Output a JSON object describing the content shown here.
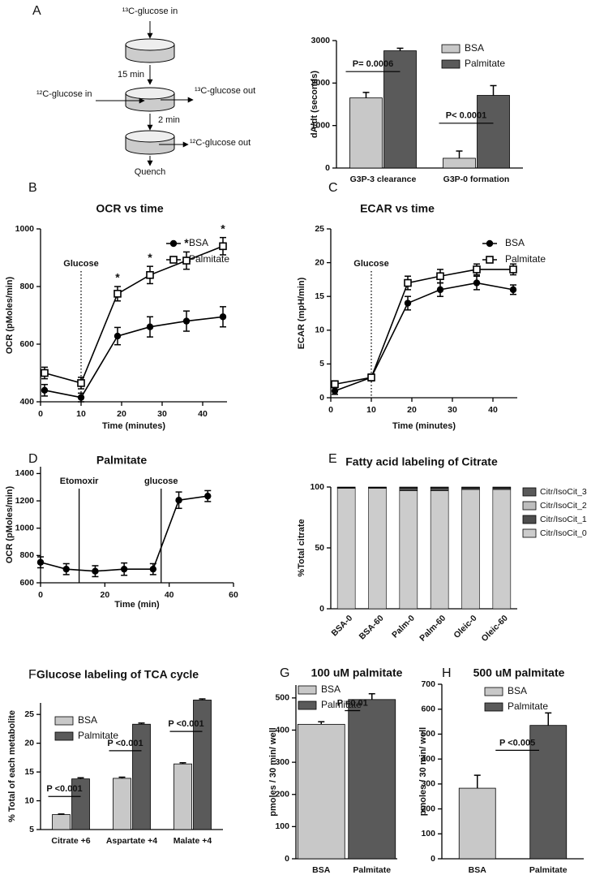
{
  "diagram": {
    "labels": [
      "¹³C-glucose in",
      "15 min",
      "¹²C-glucose in",
      "¹³C-glucose out",
      "2 min",
      "¹²C-glucose out",
      "Quench"
    ]
  },
  "chart_data": [
    {
      "type": "bar",
      "panel": "A",
      "ylabel": "dA/dt (seconds)",
      "categories": [
        "G3P-3 clearance",
        "G3P-0 formation"
      ],
      "series": [
        {
          "name": "BSA",
          "color": "#c8c8c8",
          "values": [
            1650,
            230
          ],
          "errors": [
            130,
            170
          ]
        },
        {
          "name": "Palmitate",
          "color": "#5a5a5a",
          "values": [
            2760,
            1710
          ],
          "errors": [
            60,
            230
          ]
        }
      ],
      "pvalues": [
        "P= 0.0006",
        "P< 0.0001"
      ],
      "ylim": [
        0,
        3000
      ],
      "yticks": [
        0,
        1000,
        2000,
        3000
      ]
    },
    {
      "type": "line",
      "panel": "B",
      "title": "OCR vs time",
      "xlabel": "Time (minutes)",
      "ylabel": "OCR (pMoles/min)",
      "x": [
        1,
        10,
        19,
        27,
        36,
        45
      ],
      "series": [
        {
          "name": "BSA",
          "color": "#000000",
          "marker": "circle",
          "values": [
            440,
            415,
            628,
            660,
            680,
            695
          ],
          "errors": [
            20,
            15,
            30,
            35,
            35,
            35
          ]
        },
        {
          "name": "Palmitate",
          "color": "#000000",
          "marker": "square-open",
          "values": [
            500,
            465,
            775,
            840,
            890,
            940
          ],
          "errors": [
            20,
            20,
            25,
            30,
            30,
            30
          ]
        }
      ],
      "vlines": [
        {
          "x": 10,
          "label": "Glucose"
        }
      ],
      "vline_style": "dotted",
      "significance_label": "*",
      "significant": [
        false,
        false,
        true,
        true,
        true,
        true
      ],
      "xlim": [
        0,
        46
      ],
      "xticks": [
        0,
        10,
        20,
        30,
        40
      ],
      "ylim": [
        400,
        1000
      ],
      "yticks": [
        400,
        600,
        800,
        1000
      ]
    },
    {
      "type": "line",
      "panel": "C",
      "title": "ECAR vs time",
      "xlabel": "Time (minutes)",
      "ylabel": "ECAR (mpH/min)",
      "x": [
        1,
        10,
        19,
        27,
        36,
        45
      ],
      "series": [
        {
          "name": "BSA",
          "color": "#000000",
          "marker": "circle",
          "values": [
            1,
            3,
            14,
            16,
            17,
            16
          ],
          "errors": [
            0.5,
            0.5,
            1,
            1,
            1,
            0.7
          ]
        },
        {
          "name": "Palmitate",
          "color": "#000000",
          "marker": "square-open",
          "values": [
            2,
            3,
            17,
            18,
            19,
            19
          ],
          "errors": [
            0.5,
            0.4,
            1,
            1,
            0.8,
            0.8
          ]
        }
      ],
      "vlines": [
        {
          "x": 10,
          "label": "Glucose"
        }
      ],
      "vline_style": "dotted",
      "xlim": [
        0,
        46
      ],
      "xticks": [
        0,
        10,
        20,
        30,
        40
      ],
      "ylim": [
        0,
        25
      ],
      "yticks": [
        0,
        5,
        10,
        15,
        20,
        25
      ]
    },
    {
      "type": "line",
      "panel": "D",
      "title": "Palmitate",
      "xlabel": "Time (min)",
      "ylabel": "OCR (pMoles/min)",
      "x": [
        0,
        8,
        17,
        26,
        35,
        43,
        52
      ],
      "series": [
        {
          "color": "#000000",
          "marker": "circle",
          "values": [
            750,
            700,
            685,
            700,
            700,
            1205,
            1235
          ],
          "errors": [
            40,
            40,
            40,
            45,
            40,
            60,
            40
          ]
        }
      ],
      "vlines": [
        {
          "x": 12,
          "label": "Etomoxir"
        },
        {
          "x": 37.5,
          "label": "glucose"
        }
      ],
      "vline_style": "solid",
      "xlim": [
        0,
        60
      ],
      "xticks": [
        0,
        20,
        40,
        60
      ],
      "ylim": [
        600,
        1450
      ],
      "yticks": [
        600,
        800,
        1000,
        1200,
        1400
      ]
    },
    {
      "type": "stacked-bar",
      "panel": "E",
      "title": "Fatty acid labeling of Citrate",
      "ylabel": "%Total citrate",
      "categories": [
        "BSA-0",
        "BSA-60",
        "Palm-0",
        "Palm-60",
        "Oleic-0",
        "Oleic-60"
      ],
      "series": [
        {
          "name": "Citr/IsoCit_0",
          "color": "#cccccc",
          "values": [
            99,
            99,
            97,
            97,
            98,
            98
          ]
        },
        {
          "name": "Citr/IsoCit_1",
          "color": "#4d4d4d",
          "values": [
            0.5,
            0.5,
            2,
            2,
            1,
            1
          ]
        },
        {
          "name": "Citr/IsoCit_2",
          "color": "#bdbdbd",
          "values": [
            0.3,
            0.3,
            0.5,
            0.5,
            0.5,
            0.5
          ]
        },
        {
          "name": "Citr/IsoCit_3",
          "color": "#5a5a5a",
          "values": [
            0.2,
            0.2,
            0.5,
            0.5,
            0.5,
            0.5
          ]
        }
      ],
      "ylim": [
        0,
        100
      ],
      "yticks": [
        0,
        50,
        100
      ]
    },
    {
      "type": "bar",
      "panel": "F",
      "title": "Glucose labeling of TCA cycle",
      "ylabel": "% Total of each metabolite",
      "categories": [
        "Citrate +6",
        "Aspartate +4",
        "Malate +4"
      ],
      "series": [
        {
          "name": "BSA",
          "color": "#c8c8c8",
          "values": [
            7.6,
            13.9,
            16.4
          ],
          "errors": [
            0.1,
            0.2,
            0.2
          ]
        },
        {
          "name": "Palmitate",
          "color": "#5a5a5a",
          "values": [
            13.8,
            23.3,
            27.5
          ],
          "errors": [
            0.2,
            0.2,
            0.2
          ]
        }
      ],
      "pvalues": [
        "P <0.001",
        "P <0.001",
        "P <0.001"
      ],
      "ylim": [
        5,
        27
      ],
      "yticks": [
        5,
        10,
        15,
        20,
        25
      ]
    },
    {
      "type": "bar",
      "panel": "G",
      "title": "100 uM palmitate",
      "ylabel": "pmoles / 30 min/ well",
      "categories": [
        "BSA",
        "Palmitate"
      ],
      "values": [
        418,
        495
      ],
      "errors": [
        8,
        18
      ],
      "colors": [
        "#c8c8c8",
        "#5a5a5a"
      ],
      "pvalue": "P =0.01",
      "ylim": [
        0,
        540
      ],
      "yticks": [
        0,
        100,
        200,
        300,
        400,
        500
      ]
    },
    {
      "type": "bar",
      "panel": "H",
      "title": "500 uM palmitate",
      "ylabel": "pmoles / 30 min/ well",
      "categories": [
        "BSA",
        "Palmitate"
      ],
      "values": [
        283,
        535
      ],
      "errors": [
        52,
        50
      ],
      "colors": [
        "#c8c8c8",
        "#5a5a5a"
      ],
      "pvalue": "P <0.005",
      "ylim": [
        0,
        700
      ],
      "yticks": [
        0,
        100,
        200,
        300,
        400,
        500,
        600,
        700
      ]
    }
  ]
}
